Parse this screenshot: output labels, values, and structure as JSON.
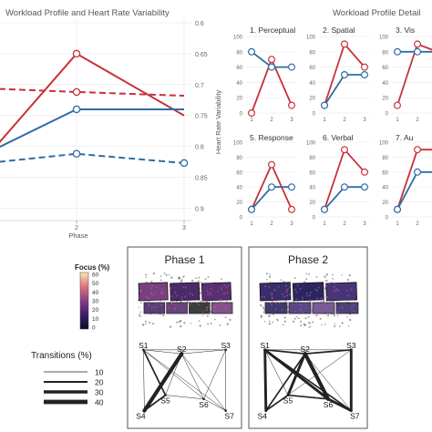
{
  "colors": {
    "red": "#c8313a",
    "blue": "#2f6da6",
    "grid": "#ececec",
    "axis": "#9a9a9a",
    "text": "#555555",
    "dark": "#222222"
  },
  "chart_data": [
    {
      "type": "line",
      "title": "Workload Profile and Heart Rate Variability",
      "xlabel": "Phase",
      "ylabel_right": "Heart Rate Variability",
      "x_ticks": [
        "2",
        "3"
      ],
      "y_right_ticks": [
        "0.6",
        "0.65",
        "0.7",
        "0.75",
        "0.8",
        "0.85",
        "0.9"
      ],
      "y_right_range": [
        0.6,
        0.92
      ],
      "series": [
        {
          "color": "red",
          "style": "solid",
          "values": [
            0.85,
            0.65,
            0.75
          ]
        },
        {
          "color": "blue",
          "style": "solid",
          "values": [
            0.825,
            0.74,
            0.74
          ]
        },
        {
          "color": "red",
          "style": "dashed",
          "values": [
            0.705,
            0.712,
            0.718
          ]
        },
        {
          "color": "blue",
          "style": "dashed",
          "values": [
            0.83,
            0.812,
            0.827
          ]
        }
      ]
    },
    {
      "type": "line",
      "title": "Workload Profile Detail",
      "y_ticks": [
        "0",
        "20",
        "40",
        "60",
        "80",
        "100"
      ],
      "x_ticks": [
        "1",
        "2",
        "3"
      ],
      "ylim": [
        0,
        100
      ],
      "panels": [
        {
          "title": "1. Perceptual",
          "red": [
            0,
            70,
            10
          ],
          "blue": [
            80,
            60,
            60
          ]
        },
        {
          "title": "2. Spatial",
          "red": [
            10,
            90,
            60
          ],
          "blue": [
            10,
            50,
            50
          ]
        },
        {
          "title": "3. Vis",
          "red": [
            10,
            90,
            80
          ],
          "blue": [
            80,
            80,
            80
          ]
        },
        {
          "title": "5. Response",
          "red": [
            10,
            70,
            10
          ],
          "blue": [
            10,
            40,
            40
          ]
        },
        {
          "title": "6. Verbal",
          "red": [
            10,
            90,
            60
          ],
          "blue": [
            10,
            40,
            40
          ]
        },
        {
          "title": "7. Au",
          "red": [
            10,
            90,
            90
          ],
          "blue": [
            10,
            60,
            60
          ]
        }
      ]
    },
    {
      "type": "heatmap",
      "legend_title": "Focus (%)",
      "legend_ticks": [
        "60",
        "50",
        "40",
        "30",
        "20",
        "10",
        "0"
      ],
      "transitions_title": "Transitions (%)",
      "transitions_ticks": [
        "10",
        "20",
        "30",
        "40"
      ],
      "nodes": [
        "S1",
        "S2",
        "S3",
        "S4",
        "S5",
        "S6",
        "S7"
      ],
      "phases": [
        {
          "title": "Phase 1",
          "edges": [
            [
              "S1",
              "S2",
              1
            ],
            [
              "S1",
              "S3",
              1
            ],
            [
              "S1",
              "S4",
              1
            ],
            [
              "S1",
              "S5",
              2
            ],
            [
              "S1",
              "S6",
              1
            ],
            [
              "S1",
              "S7",
              1
            ],
            [
              "S2",
              "S3",
              1
            ],
            [
              "S2",
              "S4",
              4
            ],
            [
              "S2",
              "S5",
              1
            ],
            [
              "S2",
              "S6",
              1
            ],
            [
              "S2",
              "S7",
              1
            ],
            [
              "S3",
              "S6",
              1
            ],
            [
              "S3",
              "S7",
              1
            ],
            [
              "S4",
              "S5",
              2
            ],
            [
              "S5",
              "S6",
              1
            ],
            [
              "S6",
              "S7",
              1
            ]
          ]
        },
        {
          "title": "Phase 2",
          "edges": [
            [
              "S1",
              "S2",
              2
            ],
            [
              "S1",
              "S3",
              1
            ],
            [
              "S1",
              "S4",
              3
            ],
            [
              "S1",
              "S5",
              1
            ],
            [
              "S1",
              "S6",
              3
            ],
            [
              "S1",
              "S7",
              2
            ],
            [
              "S2",
              "S3",
              2
            ],
            [
              "S2",
              "S4",
              2
            ],
            [
              "S2",
              "S5",
              3
            ],
            [
              "S2",
              "S6",
              4
            ],
            [
              "S2",
              "S7",
              1
            ],
            [
              "S3",
              "S7",
              3
            ],
            [
              "S3",
              "S5",
              1
            ],
            [
              "S4",
              "S5",
              2
            ],
            [
              "S5",
              "S6",
              2
            ],
            [
              "S6",
              "S7",
              3
            ]
          ]
        }
      ]
    }
  ]
}
